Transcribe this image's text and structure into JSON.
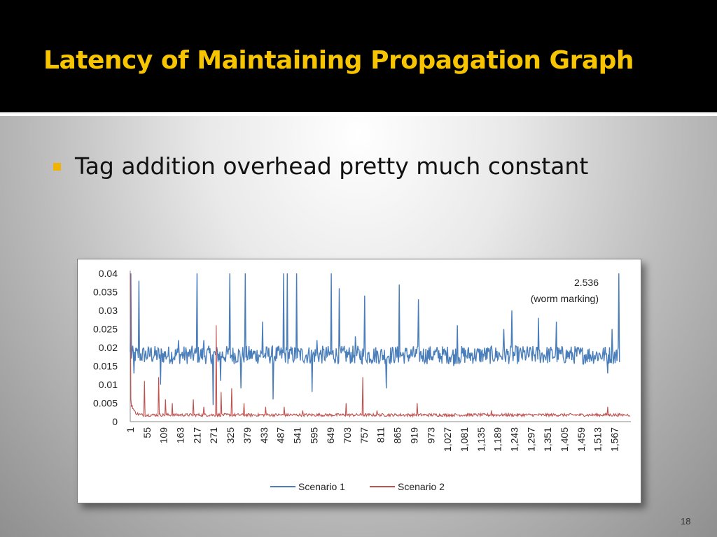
{
  "slide": {
    "title": "Latency of Maintaining Propagation Graph",
    "bullet": "Tag addition overhead pretty much constant",
    "number": "18"
  },
  "chart_data": {
    "type": "line",
    "title": "",
    "xlabel": "",
    "ylabel": "",
    "ylim": [
      0,
      0.04
    ],
    "yticks": [
      "0.04",
      "0.035",
      "0.03",
      "0.025",
      "0.02",
      "0.015",
      "0.01",
      "0.005",
      "0"
    ],
    "xticks": [
      "1",
      "55",
      "109",
      "163",
      "217",
      "271",
      "325",
      "379",
      "433",
      "487",
      "541",
      "595",
      "649",
      "703",
      "757",
      "811",
      "865",
      "919",
      "973",
      "1,027",
      "1,081",
      "1,135",
      "1,189",
      "1,243",
      "1,297",
      "1,351",
      "1,405",
      "1,459",
      "1,513",
      "1,567"
    ],
    "x_range": [
      1,
      1620
    ],
    "grid": false,
    "legend": "bottom",
    "annotation": {
      "line1": "2.536",
      "line2": "(worm marking)",
      "x": 1582
    },
    "series": [
      {
        "name": "Scenario 1",
        "color": "#4a7ebb",
        "baseline": 0.018,
        "noise": 0.0025,
        "spikes": [
          [
            3,
            0.04
          ],
          [
            14,
            0.013
          ],
          [
            30,
            0.038
          ],
          [
            70,
            0.02
          ],
          [
            100,
            0.01
          ],
          [
            157,
            0.022
          ],
          [
            218,
            0.04
          ],
          [
            240,
            0.022
          ],
          [
            270,
            0.0045
          ],
          [
            293,
            0.011
          ],
          [
            323,
            0.04
          ],
          [
            360,
            0.009
          ],
          [
            373,
            0.04
          ],
          [
            430,
            0.027
          ],
          [
            464,
            0.006
          ],
          [
            497,
            0.04
          ],
          [
            510,
            0.04
          ],
          [
            540,
            0.04
          ],
          [
            590,
            0.008
          ],
          [
            605,
            0.022
          ],
          [
            652,
            0.04
          ],
          [
            678,
            0.036
          ],
          [
            730,
            0.023
          ],
          [
            760,
            0.034
          ],
          [
            830,
            0.009
          ],
          [
            872,
            0.037
          ],
          [
            933,
            0.033
          ],
          [
            1048,
            0.015
          ],
          [
            1060,
            0.026
          ],
          [
            1210,
            0.025
          ],
          [
            1235,
            0.03
          ],
          [
            1322,
            0.028
          ],
          [
            1380,
            0.027
          ],
          [
            1545,
            0.013
          ],
          [
            1560,
            0.025
          ],
          [
            1582,
            0.04
          ],
          [
            1585,
            0.012
          ]
        ]
      },
      {
        "name": "Scenario 2",
        "color": "#c0504d",
        "baseline": 0.0018,
        "noise": 0.0004,
        "spikes": [
          [
            2,
            0.04
          ],
          [
            5,
            0.004
          ],
          [
            48,
            0.011
          ],
          [
            93,
            0.012
          ],
          [
            115,
            0.006
          ],
          [
            138,
            0.005
          ],
          [
            205,
            0.006
          ],
          [
            240,
            0.004
          ],
          [
            280,
            0.026
          ],
          [
            296,
            0.008
          ],
          [
            330,
            0.009
          ],
          [
            370,
            0.005
          ],
          [
            440,
            0.004
          ],
          [
            500,
            0.004
          ],
          [
            560,
            0.003
          ],
          [
            700,
            0.005
          ],
          [
            753,
            0.012
          ],
          [
            800,
            0.003
          ],
          [
            930,
            0.005
          ],
          [
            1170,
            0.003
          ],
          [
            1545,
            0.004
          ]
        ]
      }
    ]
  }
}
